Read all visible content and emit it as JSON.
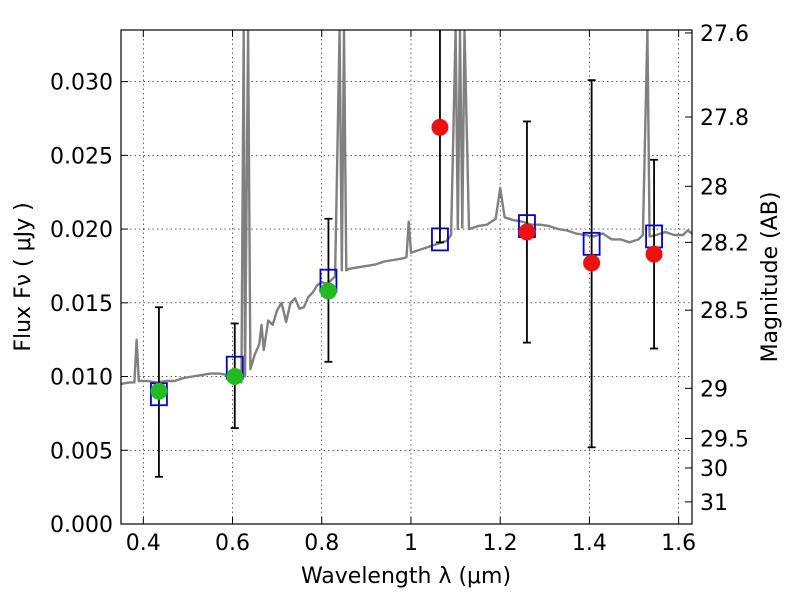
{
  "chart_data": {
    "type": "scatter",
    "xlabel": "Wavelength  λ (μm)",
    "ylabel": "Flux  Fν  ( μJy )",
    "y2label": "Magnitude (AB)",
    "xlim": [
      0.35,
      1.63
    ],
    "ylim": [
      0.0,
      0.0335
    ],
    "grid": true,
    "x_ticks": [
      {
        "value": 0.4,
        "label": "0.4"
      },
      {
        "value": 0.6,
        "label": "0.6"
      },
      {
        "value": 0.8,
        "label": "0.8"
      },
      {
        "value": 1.0,
        "label": "1"
      },
      {
        "value": 1.2,
        "label": "1.2"
      },
      {
        "value": 1.4,
        "label": "1.4"
      },
      {
        "value": 1.6,
        "label": "1.6"
      }
    ],
    "y_ticks": [
      {
        "value": 0.0,
        "label": "0.000"
      },
      {
        "value": 0.005,
        "label": "0.005"
      },
      {
        "value": 0.01,
        "label": "0.010"
      },
      {
        "value": 0.015,
        "label": "0.015"
      },
      {
        "value": 0.02,
        "label": "0.020"
      },
      {
        "value": 0.025,
        "label": "0.025"
      },
      {
        "value": 0.03,
        "label": "0.030"
      }
    ],
    "y2_ticks": [
      {
        "flux": 0.0333,
        "label": "27.6"
      },
      {
        "flux": 0.0276,
        "label": "27.8"
      },
      {
        "flux": 0.0229,
        "label": "28"
      },
      {
        "flux": 0.0191,
        "label": "28.2"
      },
      {
        "flux": 0.0145,
        "label": "28.5"
      },
      {
        "flux": 0.0092,
        "label": "29"
      },
      {
        "flux": 0.0058,
        "label": "29.5"
      },
      {
        "flux": 0.0038,
        "label": "30"
      },
      {
        "flux": 0.0015,
        "label": "31"
      }
    ],
    "spectrum": {
      "color": "#808080",
      "points": [
        [
          0.35,
          0.0095
        ],
        [
          0.37,
          0.0096
        ],
        [
          0.38,
          0.0096
        ],
        [
          0.385,
          0.0125
        ],
        [
          0.39,
          0.0097
        ],
        [
          0.41,
          0.0097
        ],
        [
          0.43,
          0.0096
        ],
        [
          0.45,
          0.0097
        ],
        [
          0.47,
          0.0097
        ],
        [
          0.49,
          0.0099
        ],
        [
          0.51,
          0.01
        ],
        [
          0.53,
          0.0101
        ],
        [
          0.55,
          0.0102
        ],
        [
          0.57,
          0.0102
        ],
        [
          0.59,
          0.0101
        ],
        [
          0.6,
          0.0101
        ],
        [
          0.61,
          0.0099
        ],
        [
          0.62,
          0.0096
        ],
        [
          0.625,
          0.0335
        ],
        [
          0.628,
          0.01
        ],
        [
          0.635,
          0.0335
        ],
        [
          0.64,
          0.0105
        ],
        [
          0.65,
          0.0115
        ],
        [
          0.66,
          0.0122
        ],
        [
          0.665,
          0.0135
        ],
        [
          0.67,
          0.0118
        ],
        [
          0.68,
          0.0138
        ],
        [
          0.69,
          0.0135
        ],
        [
          0.7,
          0.0145
        ],
        [
          0.71,
          0.015
        ],
        [
          0.72,
          0.0137
        ],
        [
          0.73,
          0.015
        ],
        [
          0.74,
          0.0153
        ],
        [
          0.75,
          0.0146
        ],
        [
          0.76,
          0.0147
        ],
        [
          0.77,
          0.0154
        ],
        [
          0.78,
          0.0157
        ],
        [
          0.79,
          0.0162
        ],
        [
          0.8,
          0.0164
        ],
        [
          0.81,
          0.0163
        ],
        [
          0.82,
          0.0165
        ],
        [
          0.83,
          0.0168
        ],
        [
          0.84,
          0.0335
        ],
        [
          0.845,
          0.0172
        ],
        [
          0.85,
          0.0335
        ],
        [
          0.855,
          0.0172
        ],
        [
          0.86,
          0.0173
        ],
        [
          0.88,
          0.0174
        ],
        [
          0.9,
          0.0175
        ],
        [
          0.92,
          0.0176
        ],
        [
          0.94,
          0.0178
        ],
        [
          0.96,
          0.0179
        ],
        [
          0.98,
          0.018
        ],
        [
          0.99,
          0.0181
        ],
        [
          0.995,
          0.0205
        ],
        [
          1.0,
          0.0184
        ],
        [
          1.02,
          0.0186
        ],
        [
          1.04,
          0.0188
        ],
        [
          1.06,
          0.019
        ],
        [
          1.07,
          0.0191
        ],
        [
          1.08,
          0.0192
        ],
        [
          1.09,
          0.0196
        ],
        [
          1.1,
          0.0335
        ],
        [
          1.105,
          0.02
        ],
        [
          1.11,
          0.0335
        ],
        [
          1.115,
          0.0201
        ],
        [
          1.12,
          0.0335
        ],
        [
          1.13,
          0.02
        ],
        [
          1.15,
          0.0202
        ],
        [
          1.17,
          0.0203
        ],
        [
          1.19,
          0.0207
        ],
        [
          1.2,
          0.0228
        ],
        [
          1.21,
          0.0208
        ],
        [
          1.23,
          0.0206
        ],
        [
          1.25,
          0.0205
        ],
        [
          1.27,
          0.0203
        ],
        [
          1.29,
          0.0203
        ],
        [
          1.31,
          0.0202
        ],
        [
          1.33,
          0.02
        ],
        [
          1.35,
          0.0199
        ],
        [
          1.37,
          0.0197
        ],
        [
          1.39,
          0.0196
        ],
        [
          1.41,
          0.0195
        ],
        [
          1.43,
          0.0197
        ],
        [
          1.45,
          0.0193
        ],
        [
          1.47,
          0.0193
        ],
        [
          1.49,
          0.0191
        ],
        [
          1.51,
          0.0193
        ],
        [
          1.52,
          0.0196
        ],
        [
          1.53,
          0.0335
        ],
        [
          1.535,
          0.0195
        ],
        [
          1.55,
          0.0196
        ],
        [
          1.57,
          0.0198
        ],
        [
          1.59,
          0.0196
        ],
        [
          1.61,
          0.0196
        ],
        [
          1.62,
          0.0199
        ],
        [
          1.63,
          0.0197
        ]
      ]
    },
    "model_boxes": {
      "color": "#0000cc",
      "points": [
        [
          0.435,
          0.0088
        ],
        [
          0.605,
          0.0106
        ],
        [
          0.815,
          0.0165
        ],
        [
          1.065,
          0.0193
        ],
        [
          1.26,
          0.0202
        ],
        [
          1.405,
          0.019
        ],
        [
          1.545,
          0.0195
        ]
      ]
    },
    "detections": {
      "color": "#22bb22",
      "points": [
        [
          0.435,
          0.009
        ],
        [
          0.605,
          0.01
        ],
        [
          0.815,
          0.0158
        ]
      ]
    },
    "nondetections": {
      "color": "#ee1111",
      "points": [
        [
          1.065,
          0.0269
        ],
        [
          1.26,
          0.0198
        ],
        [
          1.405,
          0.0177
        ],
        [
          1.545,
          0.0183
        ]
      ]
    },
    "error_bars": [
      {
        "x": 0.435,
        "low": 0.0032,
        "high": 0.0147
      },
      {
        "x": 0.605,
        "low": 0.0065,
        "high": 0.0136
      },
      {
        "x": 0.815,
        "low": 0.011,
        "high": 0.0207
      },
      {
        "x": 1.065,
        "low": 0.0191,
        "high": 0.034
      },
      {
        "x": 1.26,
        "low": 0.0123,
        "high": 0.0273
      },
      {
        "x": 1.405,
        "low": 0.0052,
        "high": 0.0301
      },
      {
        "x": 1.545,
        "low": 0.0119,
        "high": 0.0247
      }
    ]
  }
}
